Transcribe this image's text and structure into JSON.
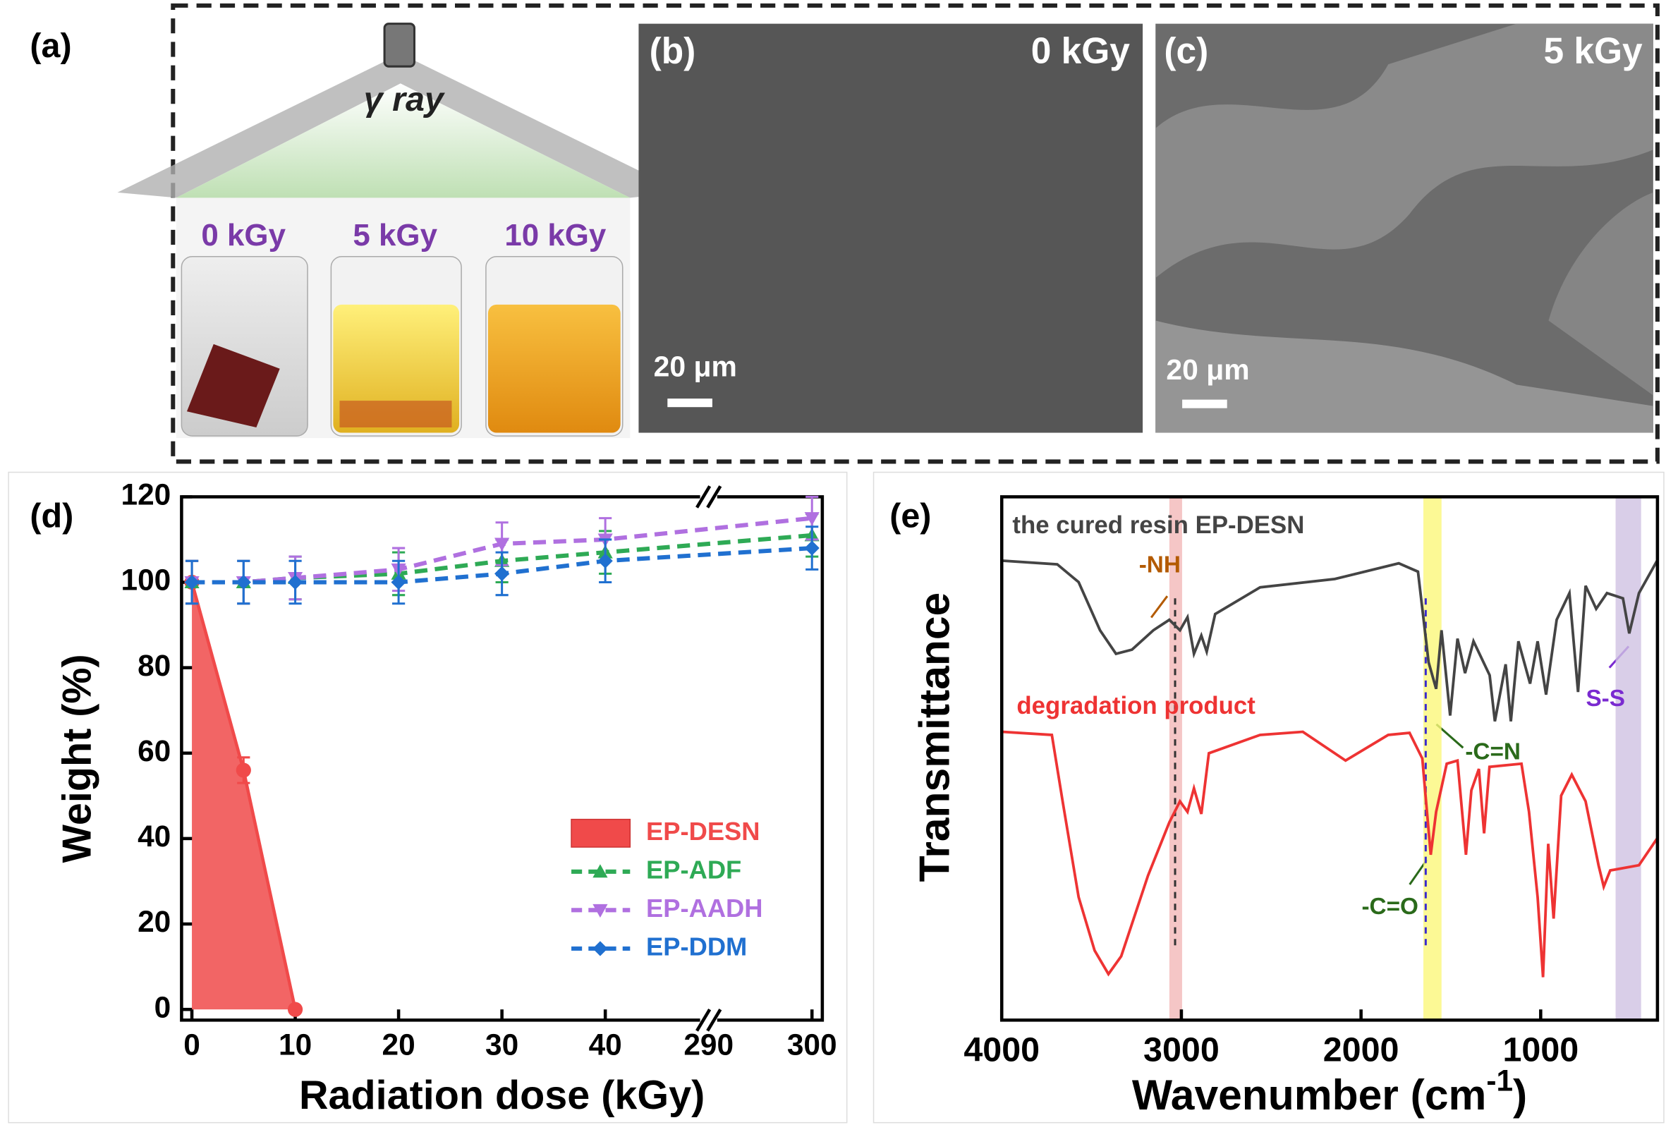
{
  "panels": {
    "a": {
      "label": "(a)",
      "source": "γ ray",
      "vials": [
        "0 kGy",
        "5 kGy",
        "10 kGy"
      ]
    },
    "b": {
      "label": "(b)",
      "dose": "0 kGy",
      "scale": "20 μm"
    },
    "c": {
      "label": "(c)",
      "dose": "5 kGy",
      "scale": "20 μm"
    }
  },
  "chart_data": [
    {
      "type": "line",
      "panel_label": "(d)",
      "xlabel": "Radiation dose (kGy)",
      "ylabel": "Weight (%)",
      "xlim": [
        -1,
        301
      ],
      "xbreak": [
        50,
        290
      ],
      "xticks": [
        0,
        10,
        20,
        30,
        40,
        290,
        300
      ],
      "ylim": [
        -2.5,
        120
      ],
      "yticks": [
        0,
        20,
        40,
        60,
        80,
        100,
        120
      ],
      "legend": "lower right",
      "series": [
        {
          "name": "EP-DESN",
          "color": "#f04a4a",
          "style": "area",
          "marker": "circle",
          "x": [
            0,
            5,
            10
          ],
          "values": [
            100,
            56,
            0
          ],
          "errors": [
            5,
            3,
            0
          ]
        },
        {
          "name": "EP-ADF",
          "color": "#2eaa55",
          "style": "dashed",
          "marker": "triangle-up",
          "x": [
            0,
            5,
            10,
            20,
            30,
            40,
            300
          ],
          "values": [
            100,
            100,
            101,
            102,
            105,
            107,
            111
          ],
          "errors": [
            5,
            5,
            5,
            5,
            5,
            5,
            5
          ]
        },
        {
          "name": "EP-AADH",
          "color": "#b070e0",
          "style": "dashed",
          "marker": "triangle-down",
          "x": [
            0,
            5,
            10,
            20,
            30,
            40,
            300
          ],
          "values": [
            100,
            100,
            101,
            103,
            109,
            110,
            115
          ],
          "errors": [
            5,
            5,
            5,
            5,
            5,
            5,
            5
          ]
        },
        {
          "name": "EP-DDM",
          "color": "#2070d0",
          "style": "dashed",
          "marker": "diamond",
          "x": [
            0,
            5,
            10,
            20,
            30,
            40,
            300
          ],
          "values": [
            100,
            100,
            100,
            100,
            102,
            105,
            108
          ],
          "errors": [
            5,
            5,
            5,
            5,
            5,
            5,
            5
          ]
        }
      ]
    },
    {
      "type": "spectrum",
      "panel_label": "(e)",
      "xlabel": "Wavenumber (cm",
      "xlabel_sup": "-1",
      "xlabel_end": ")",
      "ylabel": "Transmittance",
      "xlim": [
        4000,
        350
      ],
      "xticks": [
        4000,
        3000,
        2000,
        1000
      ],
      "ylim": [
        0,
        100
      ],
      "bands": [
        {
          "range": [
            3067,
            2996
          ],
          "color": "#f2b8b8"
        },
        {
          "range": [
            1653,
            1552
          ],
          "color": "#fbf77a"
        },
        {
          "range": [
            583,
            441
          ],
          "color": "#cfc2e2"
        }
      ],
      "guides": [
        {
          "x": 3035,
          "color": "#333"
        },
        {
          "x": 1640,
          "color": "#3a2ad0"
        }
      ],
      "annotations": [
        {
          "text": "-NH",
          "color": "#b35a00"
        },
        {
          "text": "-C=N",
          "color": "#2a6a1a"
        },
        {
          "text": "-C=O",
          "color": "#2a6a1a"
        },
        {
          "text": "S-S",
          "color": "#7a2ad0"
        }
      ],
      "series": [
        {
          "name": "the cured resin EP-DESN",
          "color": "#444444",
          "x": [
            4000,
            3691,
            3572,
            3453,
            3364,
            3275,
            3156,
            3067,
            3008,
            2966,
            2930,
            2889,
            2859,
            2812,
            2562,
            2146,
            1790,
            1683,
            1624,
            1582,
            1552,
            1504,
            1463,
            1421,
            1374,
            1284,
            1255,
            1195,
            1166,
            1124,
            1059,
            1017,
            970,
            911,
            840,
            792,
            750,
            691,
            631,
            542,
            507,
            453,
            352
          ],
          "values": [
            87.8,
            87.1,
            83.7,
            74.5,
            70,
            70.8,
            74.5,
            76.5,
            74.5,
            77,
            70,
            73.5,
            70.4,
            77.6,
            82.7,
            84.3,
            87.3,
            85.7,
            68.4,
            63.3,
            74.5,
            58.2,
            72.9,
            66.3,
            72.4,
            65.9,
            57.1,
            68,
            57.1,
            72.4,
            64.3,
            72.4,
            62.2,
            76.5,
            81.6,
            62.7,
            83,
            78.6,
            81.6,
            80.6,
            73.9,
            81.6,
            87.8
          ]
        },
        {
          "name": "degradation product",
          "color": "#ee3333",
          "x": [
            4000,
            3721,
            3661,
            3572,
            3483,
            3406,
            3335,
            3186,
            3067,
            3008,
            2966,
            2930,
            2889,
            2847,
            2562,
            2324,
            2086,
            1849,
            1730,
            1659,
            1612,
            1582,
            1523,
            1463,
            1416,
            1386,
            1344,
            1315,
            1285,
            1107,
            1065,
            1017,
            987,
            958,
            928,
            886,
            827,
            750,
            678,
            649,
            613,
            453,
            352
          ],
          "values": [
            55.1,
            54.5,
            41.8,
            23.5,
            13.3,
            8.8,
            12.2,
            27.6,
            37.8,
            41.8,
            39.8,
            44.3,
            39.4,
            51,
            54.5,
            55.1,
            49.6,
            54.5,
            54.9,
            50,
            31.6,
            39.8,
            49,
            49.6,
            31.6,
            43.9,
            48,
            35.7,
            48.4,
            49,
            39.8,
            23.5,
            8.2,
            33.7,
            19.4,
            42.9,
            46.9,
            41.8,
            29.6,
            25.5,
            28.6,
            29.6,
            34.7
          ]
        }
      ]
    }
  ]
}
